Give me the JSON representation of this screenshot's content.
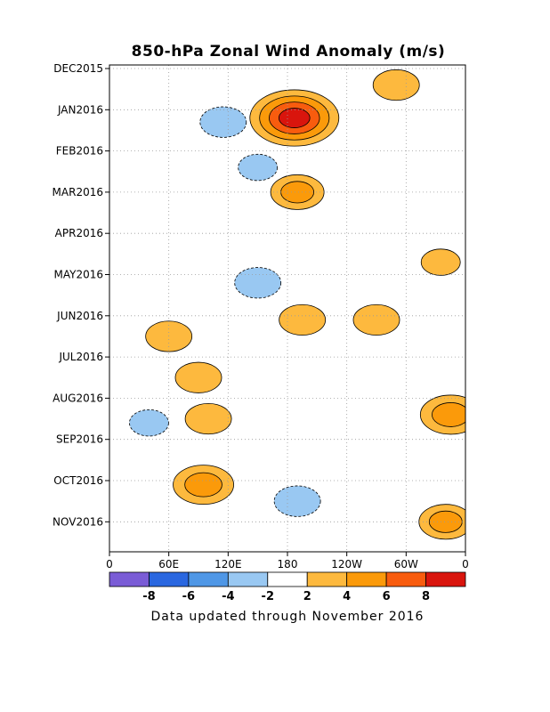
{
  "chart_data": {
    "type": "heatmap",
    "title": "850-hPa Zonal Wind Anomaly (m/s)",
    "footer": "Data updated through November 2016",
    "x_ticks": [
      "0",
      "60E",
      "120E",
      "180",
      "120W",
      "60W",
      "0"
    ],
    "y_ticks": [
      "DEC2015",
      "JAN2016",
      "FEB2016",
      "MAR2016",
      "APR2016",
      "MAY2016",
      "JUN2016",
      "JUL2016",
      "AUG2016",
      "SEP2016",
      "OCT2016",
      "NOV2016"
    ],
    "x_range_lon_east": [
      0,
      360
    ],
    "time_range": [
      "DEC2015",
      "NOV2016"
    ],
    "grid": true,
    "contour_levels": [
      -8,
      -6,
      -4,
      -2,
      2,
      4,
      6,
      8
    ],
    "colorbar": {
      "labels": [
        "-8",
        "-6",
        "-4",
        "-2",
        "2",
        "4",
        "6",
        "8"
      ],
      "colors": [
        "#7a5cd6",
        "#2a67e0",
        "#4f97e6",
        "#99c8f2",
        "#ffffff",
        "#fdb93e",
        "#fb9a0a",
        "#f85c0e",
        "#d9150d"
      ]
    },
    "anomaly_features": [
      {
        "lon": 187,
        "month": 1.2,
        "value": 9
      },
      {
        "lon": 190,
        "month": 3.0,
        "value": 4
      },
      {
        "lon": 60,
        "month": 6.5,
        "value": 3
      },
      {
        "lon": 90,
        "month": 7.5,
        "value": 3
      },
      {
        "lon": 195,
        "month": 6.1,
        "value": 3
      },
      {
        "lon": 270,
        "month": 6.1,
        "value": 3
      },
      {
        "lon": 345,
        "month": 8.4,
        "value": 5
      },
      {
        "lon": 95,
        "month": 10.1,
        "value": 5
      },
      {
        "lon": 100,
        "month": 8.5,
        "value": 3
      },
      {
        "lon": 340,
        "month": 11.0,
        "value": 4
      },
      {
        "lon": 115,
        "month": 1.3,
        "value": -3
      },
      {
        "lon": 150,
        "month": 2.4,
        "value": -2
      },
      {
        "lon": 150,
        "month": 5.2,
        "value": -3
      },
      {
        "lon": 190,
        "month": 10.5,
        "value": -3
      },
      {
        "lon": 40,
        "month": 8.6,
        "value": -2
      },
      {
        "lon": 290,
        "month": 0.4,
        "value": 3
      },
      {
        "lon": 335,
        "month": 4.7,
        "value": 2
      }
    ]
  }
}
